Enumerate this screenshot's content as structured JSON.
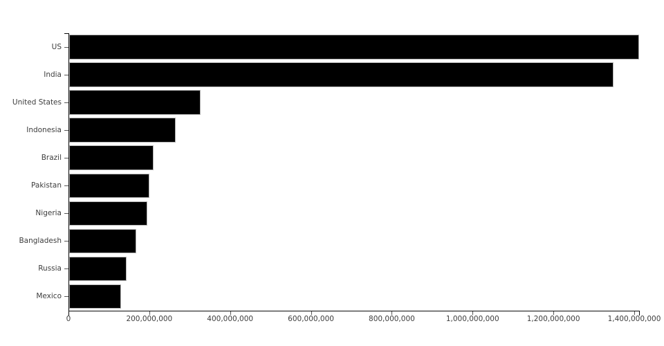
{
  "chart_data": {
    "type": "bar",
    "orientation": "horizontal",
    "title": "",
    "xlabel": "",
    "ylabel": "",
    "grid": false,
    "legend": false,
    "background": "#ffffff",
    "categories": [
      "US",
      "India",
      "United States",
      "Indonesia",
      "Brazil",
      "Pakistan",
      "Nigeria",
      "Bangladesh",
      "Russia",
      "Mexico"
    ],
    "values": [
      1412000000,
      1348000000,
      327000000,
      265000000,
      211000000,
      201000000,
      195000000,
      167000000,
      144000000,
      130000000
    ],
    "xlim": [
      0,
      1412000000
    ],
    "x_ticks": [
      {
        "value": 0,
        "label": "0"
      },
      {
        "value": 200000000,
        "label": "200,000,000"
      },
      {
        "value": 400000000,
        "label": "400,000,000"
      },
      {
        "value": 600000000,
        "label": "600,000,000"
      },
      {
        "value": 800000000,
        "label": "800,000,000"
      },
      {
        "value": 1000000000,
        "label": "1,000,000,000"
      },
      {
        "value": 1200000000,
        "label": "1,200,000,000"
      },
      {
        "value": 1400000000,
        "label": "1,400,000,000"
      }
    ],
    "colors": {
      "bar": "#000000",
      "bar_border": "#b5b5b5",
      "axis": "#0a0a0a",
      "tick_mark": "#555555",
      "text": "#3d3d3d"
    }
  }
}
